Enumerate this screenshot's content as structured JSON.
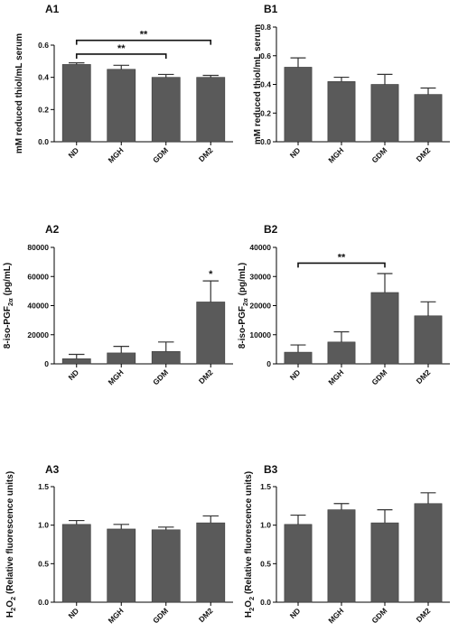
{
  "chart_data": [
    {
      "id": "A1",
      "type": "bar",
      "panel_label": "A1",
      "categories": [
        "ND",
        "MGH",
        "GDM",
        "DM2"
      ],
      "values": [
        0.48,
        0.45,
        0.4,
        0.4
      ],
      "errors": [
        0.01,
        0.025,
        0.018,
        0.012
      ],
      "ylabel": "mM reduced thiol/mL serum",
      "ylim": [
        0,
        0.6
      ],
      "yticks": [
        "0.0",
        "0.2",
        "0.4",
        "0.6"
      ],
      "brackets": [
        {
          "from": 0,
          "to": 3,
          "label": "**"
        },
        {
          "from": 0,
          "to": 2,
          "label": "**"
        }
      ],
      "stars": []
    },
    {
      "id": "B1",
      "type": "bar",
      "panel_label": "B1",
      "categories": [
        "ND",
        "MGH",
        "GDM",
        "DM2"
      ],
      "values": [
        0.52,
        0.42,
        0.4,
        0.33
      ],
      "errors": [
        0.065,
        0.03,
        0.07,
        0.045
      ],
      "ylabel": "mM reduced thiol/mL serum",
      "ylim": [
        0,
        0.8
      ],
      "yticks": [
        "0.0",
        "0.2",
        "0.4",
        "0.6",
        "0.8"
      ],
      "brackets": [],
      "stars": []
    },
    {
      "id": "A2",
      "type": "bar",
      "panel_label": "A2",
      "categories": [
        "ND",
        "MGH",
        "GDM",
        "DM2"
      ],
      "values": [
        3500,
        7500,
        8500,
        42500
      ],
      "errors": [
        3000,
        4500,
        6500,
        14500
      ],
      "ylabel_main": "8-iso-PGF",
      "ylabel_sub": "2α",
      "ylabel_tail": " (pg/mL)",
      "ylim": [
        0,
        80000
      ],
      "yticks": [
        "0",
        "20000",
        "40000",
        "60000",
        "80000"
      ],
      "brackets": [],
      "stars": [
        {
          "index": 3,
          "label": "*"
        }
      ]
    },
    {
      "id": "B2",
      "type": "bar",
      "panel_label": "B2",
      "categories": [
        "ND",
        "MGH",
        "GDM",
        "DM2"
      ],
      "values": [
        4000,
        7500,
        24500,
        16500
      ],
      "errors": [
        2500,
        3500,
        6500,
        4800
      ],
      "ylabel_main": "8-iso-PGF",
      "ylabel_sub": "2α",
      "ylabel_tail": " (pg/mL)",
      "ylim": [
        0,
        40000
      ],
      "yticks": [
        "0",
        "10000",
        "20000",
        "30000",
        "40000"
      ],
      "brackets": [
        {
          "from": 0,
          "to": 2,
          "label": "**"
        }
      ],
      "stars": []
    },
    {
      "id": "A3",
      "type": "bar",
      "panel_label": "A3",
      "categories": [
        "ND",
        "MGH",
        "GDM",
        "DM2"
      ],
      "values": [
        1.01,
        0.95,
        0.94,
        1.03
      ],
      "errors": [
        0.05,
        0.06,
        0.035,
        0.09
      ],
      "ylabel_main": "H",
      "ylabel_sub": "2",
      "ylabel_mid": "O",
      "ylabel_sub2": "2",
      "ylabel_tail": " (Relative fluorescence units)",
      "ylim": [
        0,
        1.5
      ],
      "yticks": [
        "0.0",
        "0.5",
        "1.0",
        "1.5"
      ],
      "brackets": [],
      "stars": []
    },
    {
      "id": "B3",
      "type": "bar",
      "panel_label": "B3",
      "categories": [
        "ND",
        "MGH",
        "GDM",
        "DM2"
      ],
      "values": [
        1.01,
        1.2,
        1.03,
        1.28
      ],
      "errors": [
        0.12,
        0.08,
        0.17,
        0.14
      ],
      "ylabel_main": "H",
      "ylabel_sub": "2",
      "ylabel_mid": "O",
      "ylabel_sub2": "2",
      "ylabel_tail": " (Relative fluorescence units)",
      "ylim": [
        0,
        1.5
      ],
      "yticks": [
        "0.0",
        "0.5",
        "1.0",
        "1.5"
      ],
      "brackets": [],
      "stars": []
    }
  ],
  "colors": {
    "bar": "#5a5a5a",
    "axis": "#000000"
  }
}
